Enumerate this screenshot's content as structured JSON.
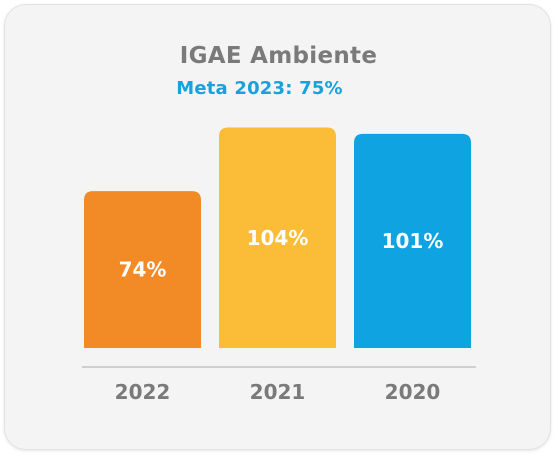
{
  "chart_data": {
    "type": "bar",
    "title": "IGAE Ambiente",
    "subtitle": "Meta 2023: 75%",
    "categories": [
      "2022",
      "2021",
      "2020"
    ],
    "values": [
      74,
      104,
      101
    ],
    "value_labels": [
      "74%",
      "104%",
      "101%"
    ],
    "colors": [
      "#F28A25",
      "#FBBC38",
      "#0FA3E2"
    ],
    "ylim": [
      0,
      120
    ],
    "grid": false,
    "legend": "none",
    "xlabel": "",
    "ylabel": ""
  },
  "colors": {
    "subtitle": "#1AA0DA",
    "title": "#7A7A7A",
    "baseline": "#CFCFCF",
    "card_background": "#F4F4F4"
  }
}
